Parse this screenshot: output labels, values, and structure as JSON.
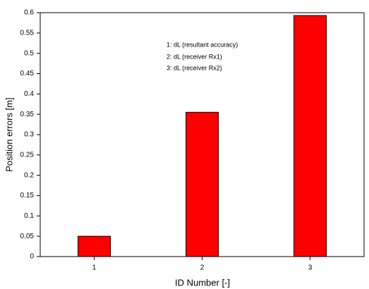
{
  "chart_data": {
    "type": "bar",
    "xlabel": "ID Number [-]",
    "ylabel": "Position errors [m]",
    "annotations": [
      "1: dL (resultant accuracy)",
      "2: dL (receiver Rx1)",
      "3: dL (receiver Rx2)"
    ],
    "categories": [
      "1",
      "2",
      "3"
    ],
    "values": [
      0.05,
      0.355,
      0.593
    ],
    "color": "#ff0000",
    "ylim": [
      0,
      0.6
    ],
    "yticks": [
      0,
      0.05,
      0.1,
      0.15,
      0.2,
      0.25,
      0.3,
      0.35,
      0.4,
      0.45,
      0.5,
      0.55,
      0.6
    ]
  }
}
